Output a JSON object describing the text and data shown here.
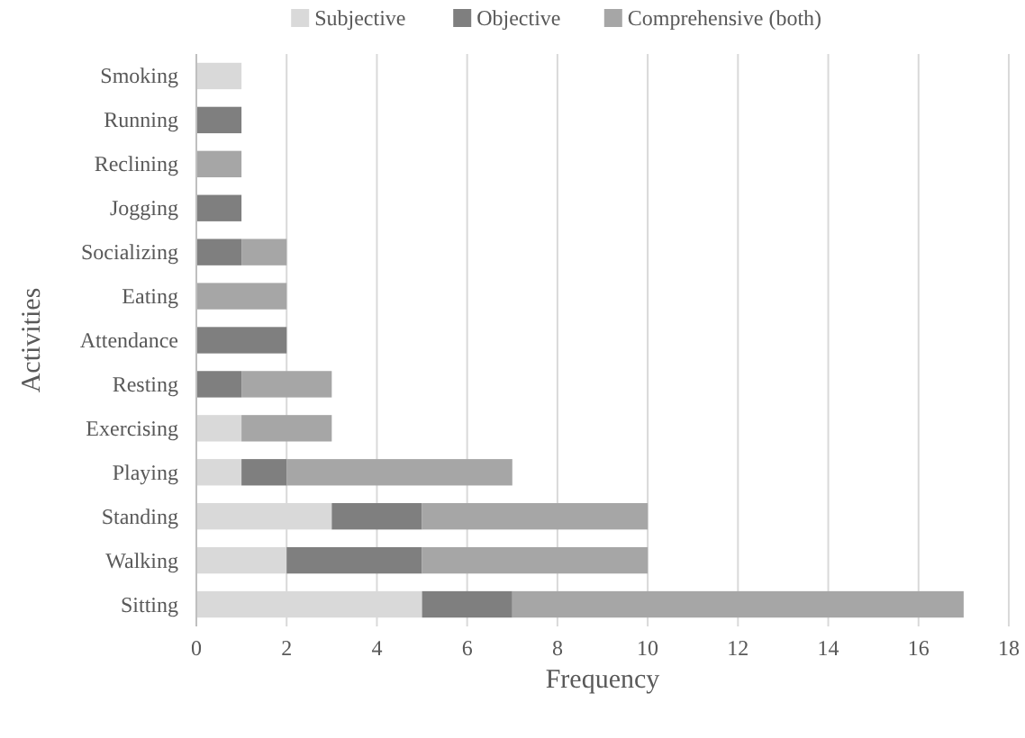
{
  "chart_data": {
    "type": "bar",
    "orientation": "horizontal",
    "stacked": true,
    "xlabel": "Frequency",
    "ylabel": "Activities",
    "categories": [
      "Smoking",
      "Running",
      "Reclining",
      "Jogging",
      "Socializing",
      "Eating",
      "Attendance",
      "Resting",
      "Exercising",
      "Playing",
      "Standing",
      "Walking",
      "Sitting"
    ],
    "series": [
      {
        "name": "Subjective",
        "color": "#d9d9d9",
        "values": [
          1,
          0,
          0,
          0,
          0,
          0,
          0,
          0,
          1,
          1,
          3,
          2,
          5
        ]
      },
      {
        "name": "Objective",
        "color": "#7f7f7f",
        "values": [
          0,
          1,
          0,
          1,
          1,
          0,
          2,
          1,
          0,
          1,
          2,
          3,
          2
        ]
      },
      {
        "name": "Comprehensive (both)",
        "color": "#a6a6a6",
        "values": [
          0,
          0,
          1,
          0,
          1,
          2,
          0,
          2,
          2,
          5,
          5,
          5,
          10
        ]
      }
    ],
    "xlim": [
      0,
      18
    ],
    "xticks": [
      0,
      2,
      4,
      6,
      8,
      10,
      12,
      14,
      16,
      18
    ],
    "grid": "x",
    "legend": "top"
  }
}
